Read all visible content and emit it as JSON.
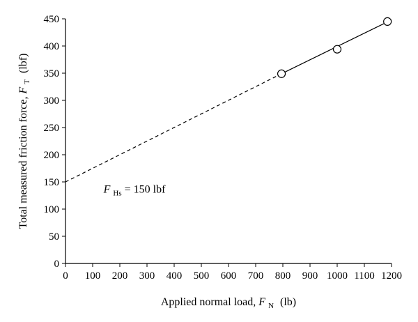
{
  "chart_data": {
    "type": "scatter",
    "title": "",
    "xlabel": {
      "text": "Applied normal load, ",
      "symbol": "F",
      "subscript": "N",
      "unit": "(lb)"
    },
    "ylabel": {
      "text": "Total measured friction force, ",
      "symbol": "F",
      "subscript": "T",
      "unit": "(lbf)"
    },
    "xlim": [
      0,
      1200
    ],
    "ylim": [
      0,
      450
    ],
    "xticks": [
      0,
      100,
      200,
      300,
      400,
      500,
      600,
      700,
      800,
      900,
      1000,
      1100,
      1200
    ],
    "yticks": [
      0,
      50,
      100,
      150,
      200,
      250,
      300,
      350,
      400,
      450
    ],
    "grid": false,
    "series": [
      {
        "kind": "points",
        "marker": "open-circle",
        "x": [
          795,
          1000,
          1185
        ],
        "y": [
          349,
          394,
          445
        ]
      },
      {
        "kind": "fit-line-solid",
        "x": [
          795,
          1200
        ],
        "y": [
          349,
          448
        ]
      },
      {
        "kind": "fit-line-dashed",
        "x": [
          0,
          795
        ],
        "y": [
          150,
          349
        ]
      }
    ],
    "annotation": {
      "symbol": "F",
      "subscript": "Hs",
      "text": " = 150 lbf",
      "x": 140,
      "y": 130
    },
    "colors": {
      "line": "#000000",
      "marker": "#000000",
      "background": "#ffffff"
    }
  }
}
